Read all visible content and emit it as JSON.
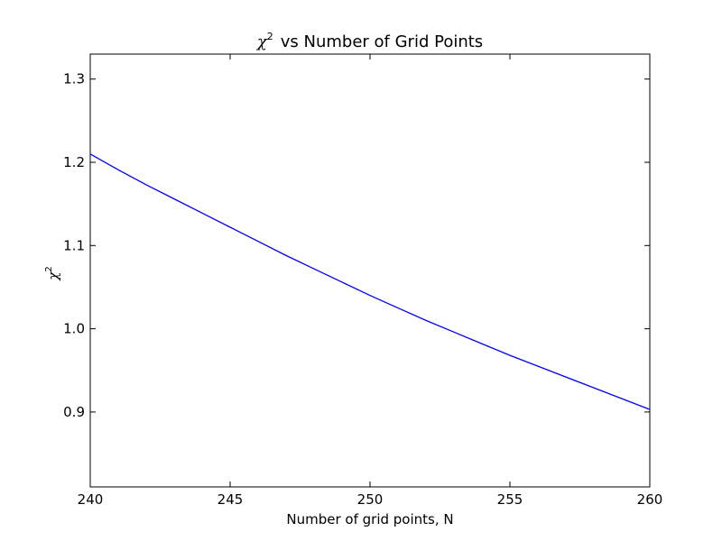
{
  "chart_data": {
    "type": "line",
    "title": {
      "symbol": "χ",
      "superscript": "2",
      "text": "vs Number of Grid Points"
    },
    "xlabel": "Number of grid points, N",
    "ylabel": {
      "symbol": "χ",
      "superscript": "2"
    },
    "xlim": [
      240,
      260
    ],
    "ylim": [
      0.81,
      1.33
    ],
    "xticks": [
      240,
      245,
      250,
      255,
      260
    ],
    "yticks": [
      0.9,
      1.0,
      1.1,
      1.2,
      1.3
    ],
    "xtick_labels": [
      "240",
      "245",
      "250",
      "255",
      "260"
    ],
    "ytick_labels": [
      "0.9",
      "1.0",
      "1.1",
      "1.2",
      "1.3"
    ],
    "grid": false,
    "series": [
      {
        "color": "#0000ff",
        "x": [
          240,
          241,
          242,
          243,
          244,
          245,
          246,
          247,
          248,
          249,
          250,
          251,
          252,
          253,
          254,
          255,
          256,
          257,
          258,
          259,
          260
        ],
        "y": [
          1.21,
          1.191,
          1.173,
          1.156,
          1.139,
          1.122,
          1.105,
          1.088,
          1.072,
          1.056,
          1.04,
          1.025,
          1.01,
          0.996,
          0.982,
          0.968,
          0.955,
          0.942,
          0.929,
          0.916,
          0.903
        ]
      }
    ]
  }
}
